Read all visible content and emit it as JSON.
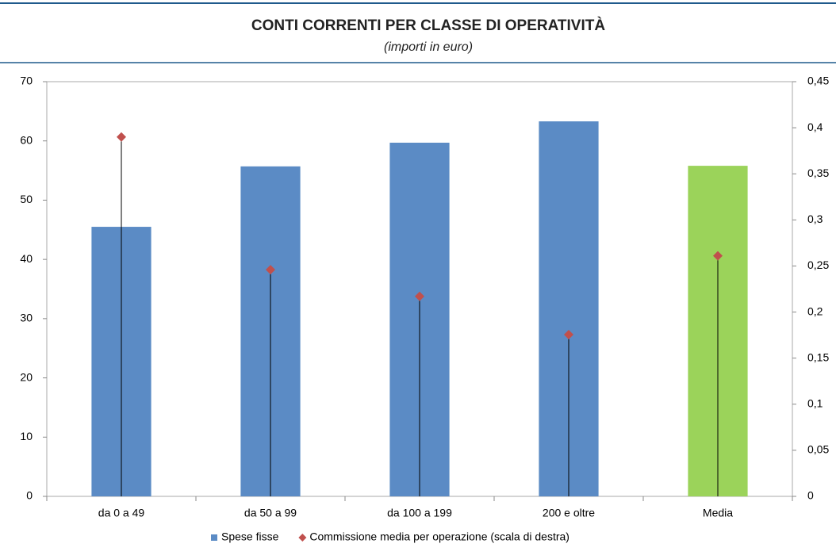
{
  "chart_data": {
    "type": "bar",
    "title": "CONTI CORRENTI PER CLASSE DI OPERATIVITÀ",
    "subtitle": "(importi in euro)",
    "categories": [
      "da 0 a 49",
      "da 50 a 99",
      "da 100 a 199",
      "200 e oltre",
      "Media"
    ],
    "series": [
      {
        "name": "Spese fisse",
        "type": "bar",
        "color": "#5b8bc5",
        "colors": [
          "#5b8bc5",
          "#5b8bc5",
          "#5b8bc5",
          "#5b8bc5",
          "#9bd35a"
        ],
        "values": [
          45.5,
          55.7,
          59.7,
          63.3,
          55.8
        ]
      },
      {
        "name": "Commissione media per operazione (scala di destra)",
        "type": "scatter",
        "axis": "y2",
        "marker": "diamond",
        "drop_lines": true,
        "color": "#c0504d",
        "values": [
          0.39,
          0.246,
          0.217,
          0.1755,
          0.261
        ]
      }
    ],
    "ylim": [
      0,
      70
    ],
    "yticks": [
      0,
      10,
      20,
      30,
      40,
      50,
      60,
      70
    ],
    "y2lim": [
      0,
      0.45
    ],
    "y2ticks": [
      0,
      {
        "value": 0.05,
        "label": "0,05"
      },
      {
        "value": 0.1,
        "label": "0,1"
      },
      {
        "value": 0.15,
        "label": "0,15"
      },
      {
        "value": 0.2,
        "label": "0,2"
      },
      {
        "value": 0.25,
        "label": "0,25"
      },
      {
        "value": 0.3,
        "label": "0,3"
      },
      {
        "value": 0.35,
        "label": "0,35"
      },
      {
        "value": 0.4,
        "label": "0,4"
      },
      {
        "value": 0.45,
        "label": "0,45"
      }
    ],
    "grid": false,
    "legend": "bottom"
  }
}
